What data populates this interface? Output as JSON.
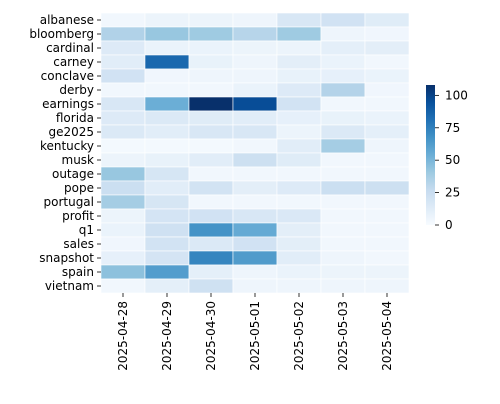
{
  "chart_data": {
    "type": "heatmap",
    "title": "",
    "xlabel": "",
    "ylabel": "",
    "x": [
      "2025-04-28",
      "2025-04-29",
      "2025-04-30",
      "2025-05-01",
      "2025-05-02",
      "2025-05-03",
      "2025-05-04"
    ],
    "y": [
      "albanese",
      "bloomberg",
      "cardinal",
      "carney",
      "conclave",
      "derby",
      "earnings",
      "florida",
      "ge2025",
      "kentucky",
      "musk",
      "outage",
      "pope",
      "portugal",
      "profit",
      "q1",
      "sales",
      "snapshot",
      "spain",
      "vietnam"
    ],
    "values": [
      [
        3,
        6,
        6,
        5,
        17,
        21,
        13
      ],
      [
        34,
        42,
        40,
        32,
        40,
        5,
        4
      ],
      [
        14,
        7,
        7,
        6,
        6,
        10,
        11
      ],
      [
        12,
        85,
        8,
        5,
        11,
        7,
        3
      ],
      [
        21,
        4,
        5,
        5,
        8,
        9,
        7
      ],
      [
        3,
        3,
        3,
        7,
        14,
        33,
        4
      ],
      [
        17,
        54,
        108,
        96,
        20,
        3,
        3
      ],
      [
        14,
        15,
        13,
        12,
        9,
        8,
        7
      ],
      [
        15,
        12,
        17,
        17,
        6,
        15,
        10
      ],
      [
        2,
        2,
        2,
        3,
        12,
        38,
        5
      ],
      [
        6,
        8,
        12,
        23,
        13,
        3,
        3
      ],
      [
        42,
        18,
        3,
        3,
        3,
        3,
        3
      ],
      [
        24,
        12,
        20,
        11,
        14,
        24,
        23
      ],
      [
        38,
        18,
        3,
        3,
        3,
        3,
        3
      ],
      [
        6,
        19,
        21,
        17,
        16,
        3,
        3
      ],
      [
        7,
        22,
        67,
        56,
        11,
        3,
        3
      ],
      [
        4,
        20,
        15,
        21,
        11,
        3,
        3
      ],
      [
        9,
        19,
        73,
        63,
        12,
        5,
        3
      ],
      [
        45,
        62,
        10,
        5,
        7,
        6,
        6
      ],
      [
        3,
        10,
        22,
        5,
        5,
        5,
        5
      ]
    ],
    "colorbar": {
      "min": 0,
      "max": 108,
      "ticks": [
        0,
        25,
        50,
        75,
        100
      ],
      "colormap": "Blues"
    },
    "grid": false
  }
}
